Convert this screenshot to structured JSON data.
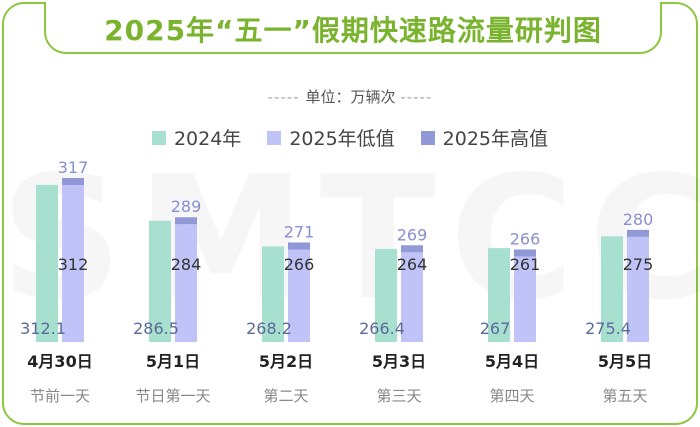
{
  "title": "2025年“五一”假期快速路流量研判图",
  "unit_label": "单位：万辆次",
  "colors": {
    "frame": "#8dc63f",
    "s2024": "#a8e0d0",
    "s2025_low": "#bfc3f8",
    "s2025_high": "#9098d6",
    "label_low": "#8a8fd0",
    "label_2024": "#5a6a9a"
  },
  "legend": [
    {
      "label": "2024年",
      "color": "#a8e0d0"
    },
    {
      "label": "2025年低值",
      "color": "#bfc3f8"
    },
    {
      "label": "2025年高值",
      "color": "#9098d6"
    }
  ],
  "chart_data": {
    "type": "bar",
    "categories": [
      "4月30日",
      "5月1日",
      "5月2日",
      "5月3日",
      "5月4日",
      "5月5日"
    ],
    "subcategories": [
      "节前一天",
      "节日第一天",
      "第二天",
      "第三天",
      "第四天",
      "第五天"
    ],
    "series": [
      {
        "name": "2024年",
        "values": [
          312.1,
          286.5,
          268.2,
          266.4,
          267,
          275.4
        ]
      },
      {
        "name": "2025年低值",
        "values": [
          312,
          284,
          266,
          264,
          261,
          275
        ]
      },
      {
        "name": "2025年高值",
        "values": [
          317,
          289,
          271,
          269,
          266,
          280
        ]
      }
    ],
    "ylim": [
      0,
      317
    ],
    "legend_position": "top"
  }
}
